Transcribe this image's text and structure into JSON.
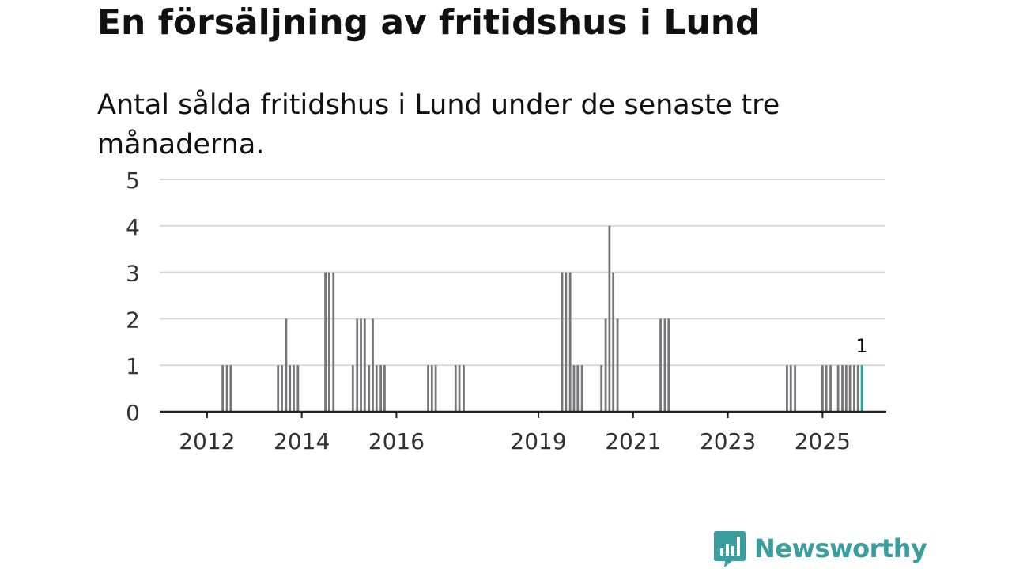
{
  "title": "En försäljning av fritidshus i Lund",
  "subtitle": "Antal sålda fritidshus i Lund under de senaste tre månaderna.",
  "brand": {
    "name": "Newsworthy",
    "icon": "newsworthy-chart-bubble-icon",
    "color": "#3a9e9e"
  },
  "colors": {
    "bar": "#75757a",
    "highlight": "#1fa7a3",
    "grid": "#d9d9d9",
    "axis": "#222222",
    "text": "#111111"
  },
  "chart_data": {
    "type": "bar",
    "title": "En försäljning av fritidshus i Lund",
    "subtitle": "Antal sålda fritidshus i Lund under de senaste tre månaderna.",
    "xlabel": "",
    "ylabel": "",
    "x_range": [
      2011.0,
      2026.33
    ],
    "ylim": [
      0,
      5
    ],
    "yticks": [
      0,
      1,
      2,
      3,
      4,
      5
    ],
    "xticks": [
      2012,
      2014,
      2016,
      2019,
      2021,
      2023,
      2025
    ],
    "grid": true,
    "bar_width_years": 0.0667,
    "series": [
      {
        "name": "Antal sålda fritidshus",
        "points": [
          {
            "x": 2012.33,
            "value": 1
          },
          {
            "x": 2012.42,
            "value": 1
          },
          {
            "x": 2012.5,
            "value": 1
          },
          {
            "x": 2013.5,
            "value": 1
          },
          {
            "x": 2013.58,
            "value": 1
          },
          {
            "x": 2013.67,
            "value": 2
          },
          {
            "x": 2013.75,
            "value": 1
          },
          {
            "x": 2013.83,
            "value": 1
          },
          {
            "x": 2013.92,
            "value": 1
          },
          {
            "x": 2014.5,
            "value": 3
          },
          {
            "x": 2014.58,
            "value": 3
          },
          {
            "x": 2014.67,
            "value": 3
          },
          {
            "x": 2015.08,
            "value": 1
          },
          {
            "x": 2015.17,
            "value": 2
          },
          {
            "x": 2015.25,
            "value": 2
          },
          {
            "x": 2015.33,
            "value": 2
          },
          {
            "x": 2015.42,
            "value": 1
          },
          {
            "x": 2015.5,
            "value": 2
          },
          {
            "x": 2015.58,
            "value": 1
          },
          {
            "x": 2015.67,
            "value": 1
          },
          {
            "x": 2015.75,
            "value": 1
          },
          {
            "x": 2016.67,
            "value": 1
          },
          {
            "x": 2016.75,
            "value": 1
          },
          {
            "x": 2016.83,
            "value": 1
          },
          {
            "x": 2017.25,
            "value": 1
          },
          {
            "x": 2017.33,
            "value": 1
          },
          {
            "x": 2017.42,
            "value": 1
          },
          {
            "x": 2019.5,
            "value": 3
          },
          {
            "x": 2019.58,
            "value": 3
          },
          {
            "x": 2019.67,
            "value": 3
          },
          {
            "x": 2019.75,
            "value": 1
          },
          {
            "x": 2019.83,
            "value": 1
          },
          {
            "x": 2019.92,
            "value": 1
          },
          {
            "x": 2020.33,
            "value": 1
          },
          {
            "x": 2020.42,
            "value": 2
          },
          {
            "x": 2020.5,
            "value": 4
          },
          {
            "x": 2020.58,
            "value": 3
          },
          {
            "x": 2020.67,
            "value": 2
          },
          {
            "x": 2021.58,
            "value": 2
          },
          {
            "x": 2021.67,
            "value": 2
          },
          {
            "x": 2021.75,
            "value": 2
          },
          {
            "x": 2024.25,
            "value": 1
          },
          {
            "x": 2024.33,
            "value": 1
          },
          {
            "x": 2024.42,
            "value": 1
          },
          {
            "x": 2025.0,
            "value": 1
          },
          {
            "x": 2025.08,
            "value": 1
          },
          {
            "x": 2025.17,
            "value": 1
          },
          {
            "x": 2025.33,
            "value": 1
          },
          {
            "x": 2025.42,
            "value": 1
          },
          {
            "x": 2025.5,
            "value": 1
          },
          {
            "x": 2025.58,
            "value": 1
          },
          {
            "x": 2025.67,
            "value": 1
          },
          {
            "x": 2025.75,
            "value": 1
          },
          {
            "x": 2025.83,
            "value": 1
          }
        ]
      }
    ],
    "annotations": [
      {
        "x": 2025.83,
        "value": 1,
        "text": "1"
      }
    ]
  }
}
